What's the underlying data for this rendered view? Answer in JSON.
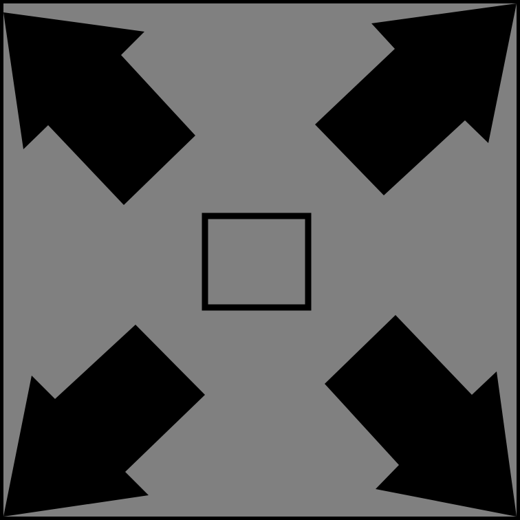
{
  "icon": {
    "name": "fullscreen-expand-icon",
    "background_color": "#808080",
    "arrow_color": "#000000",
    "frame_color": "#000000",
    "arrows": [
      {
        "name": "arrow-up-left-icon",
        "direction": "up-left"
      },
      {
        "name": "arrow-up-right-icon",
        "direction": "up-right"
      },
      {
        "name": "arrow-down-left-icon",
        "direction": "down-left"
      },
      {
        "name": "arrow-down-right-icon",
        "direction": "down-right"
      }
    ],
    "center_symbol": "square-outline-icon"
  }
}
